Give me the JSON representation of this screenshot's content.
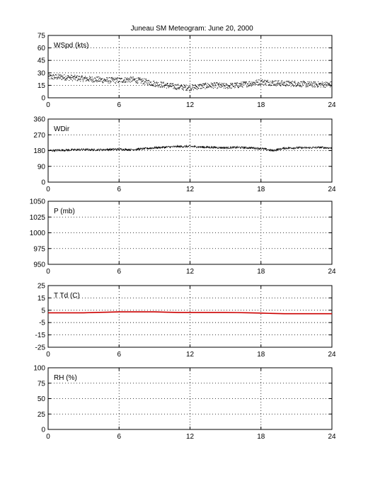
{
  "figure": {
    "title_left": "Juneau SM Meteogram:",
    "title_right": "June 20, 2000"
  },
  "chart_data": [
    {
      "type": "scatter",
      "panel_label": "WSpd (kts)",
      "x_ticks": [
        "0",
        "6",
        "12",
        "18",
        "24"
      ],
      "xlim": [
        0,
        24
      ],
      "y_ticks": [
        "0",
        "15",
        "30",
        "45",
        "60",
        "75"
      ],
      "ylim": [
        0,
        75
      ],
      "grid": true,
      "color": "#000000",
      "trend": {
        "x": [
          0,
          1,
          2,
          3,
          4,
          5,
          6,
          7,
          8,
          9,
          10,
          11,
          12,
          13,
          14,
          15,
          16,
          17,
          18,
          19,
          20,
          21,
          22,
          23,
          24
        ],
        "y": [
          25,
          25,
          24,
          23,
          22,
          21,
          21,
          22,
          20,
          17,
          15,
          13,
          12,
          14,
          15,
          14,
          15,
          17,
          19,
          18,
          17,
          17,
          16,
          16,
          16
        ]
      },
      "spread": 3.5
    },
    {
      "type": "line",
      "panel_label": "WDir",
      "x_ticks": [
        "0",
        "6",
        "12",
        "18",
        "24"
      ],
      "xlim": [
        0,
        24
      ],
      "y_ticks": [
        "0",
        "90",
        "180",
        "270",
        "360"
      ],
      "ylim": [
        0,
        360
      ],
      "grid": true,
      "color": "#000000",
      "trend": {
        "x": [
          0,
          1,
          2,
          3,
          4,
          5,
          6,
          7,
          8,
          9,
          10,
          11,
          12,
          13,
          14,
          15,
          16,
          17,
          18,
          19,
          20,
          21,
          22,
          23,
          24
        ],
        "y": [
          180,
          182,
          184,
          186,
          184,
          186,
          188,
          185,
          190,
          196,
          200,
          203,
          204,
          200,
          198,
          196,
          198,
          196,
          192,
          180,
          194,
          196,
          196,
          198,
          194
        ]
      },
      "spread": 6
    },
    {
      "type": "line",
      "panel_label": "P (mb)",
      "x_ticks": [
        "0",
        "6",
        "12",
        "18",
        "24"
      ],
      "xlim": [
        0,
        24
      ],
      "y_ticks": [
        "950",
        "975",
        "1000",
        "1025",
        "1050"
      ],
      "ylim": [
        950,
        1050
      ],
      "grid": true,
      "color": "#000000",
      "trend": {
        "x": [],
        "y": []
      },
      "spread": 0
    },
    {
      "type": "line",
      "panel_label": "T Td (C)",
      "x_ticks": [
        "0",
        "6",
        "12",
        "18",
        "24"
      ],
      "xlim": [
        0,
        24
      ],
      "y_ticks": [
        "-25",
        "-15",
        "-5",
        "5",
        "15",
        "25"
      ],
      "ylim": [
        -25,
        25
      ],
      "grid": true,
      "color": "#cc0000",
      "series": [
        {
          "x": [
            0,
            1,
            2,
            3,
            4,
            5,
            6,
            7,
            8,
            9,
            10,
            11,
            12,
            13,
            14,
            15,
            16,
            17,
            18,
            19,
            20,
            21,
            22,
            23,
            24
          ],
          "y": [
            3,
            3,
            3,
            3,
            3.3,
            3.5,
            3.8,
            3.8,
            3.8,
            3.8,
            3.5,
            3.3,
            3.3,
            3.3,
            3.3,
            3.3,
            3.2,
            3,
            2.8,
            2.5,
            2.3,
            2.3,
            2.3,
            2.3,
            2.3
          ]
        },
        {
          "x": [
            0,
            1,
            2,
            3,
            4,
            5,
            6,
            7,
            8,
            9,
            10,
            11,
            12,
            13,
            14,
            15,
            16,
            17,
            18,
            19,
            20,
            21,
            22,
            23,
            24
          ],
          "y": [
            2.8,
            2.8,
            2.8,
            2.8,
            3.1,
            3.3,
            3.6,
            3.6,
            3.6,
            3.6,
            3.3,
            3.1,
            3.1,
            3.1,
            3.1,
            3.1,
            3,
            2.8,
            2.6,
            2.3,
            2.1,
            2.1,
            2.1,
            2.1,
            2.1
          ]
        }
      ]
    },
    {
      "type": "line",
      "panel_label": "RH (%)",
      "x_ticks": [
        "0",
        "6",
        "12",
        "18",
        "24"
      ],
      "xlim": [
        0,
        24
      ],
      "y_ticks": [
        "0",
        "25",
        "50",
        "75",
        "100"
      ],
      "ylim": [
        0,
        100
      ],
      "grid": true,
      "color": "#000000",
      "trend": {
        "x": [],
        "y": []
      },
      "spread": 0
    }
  ]
}
